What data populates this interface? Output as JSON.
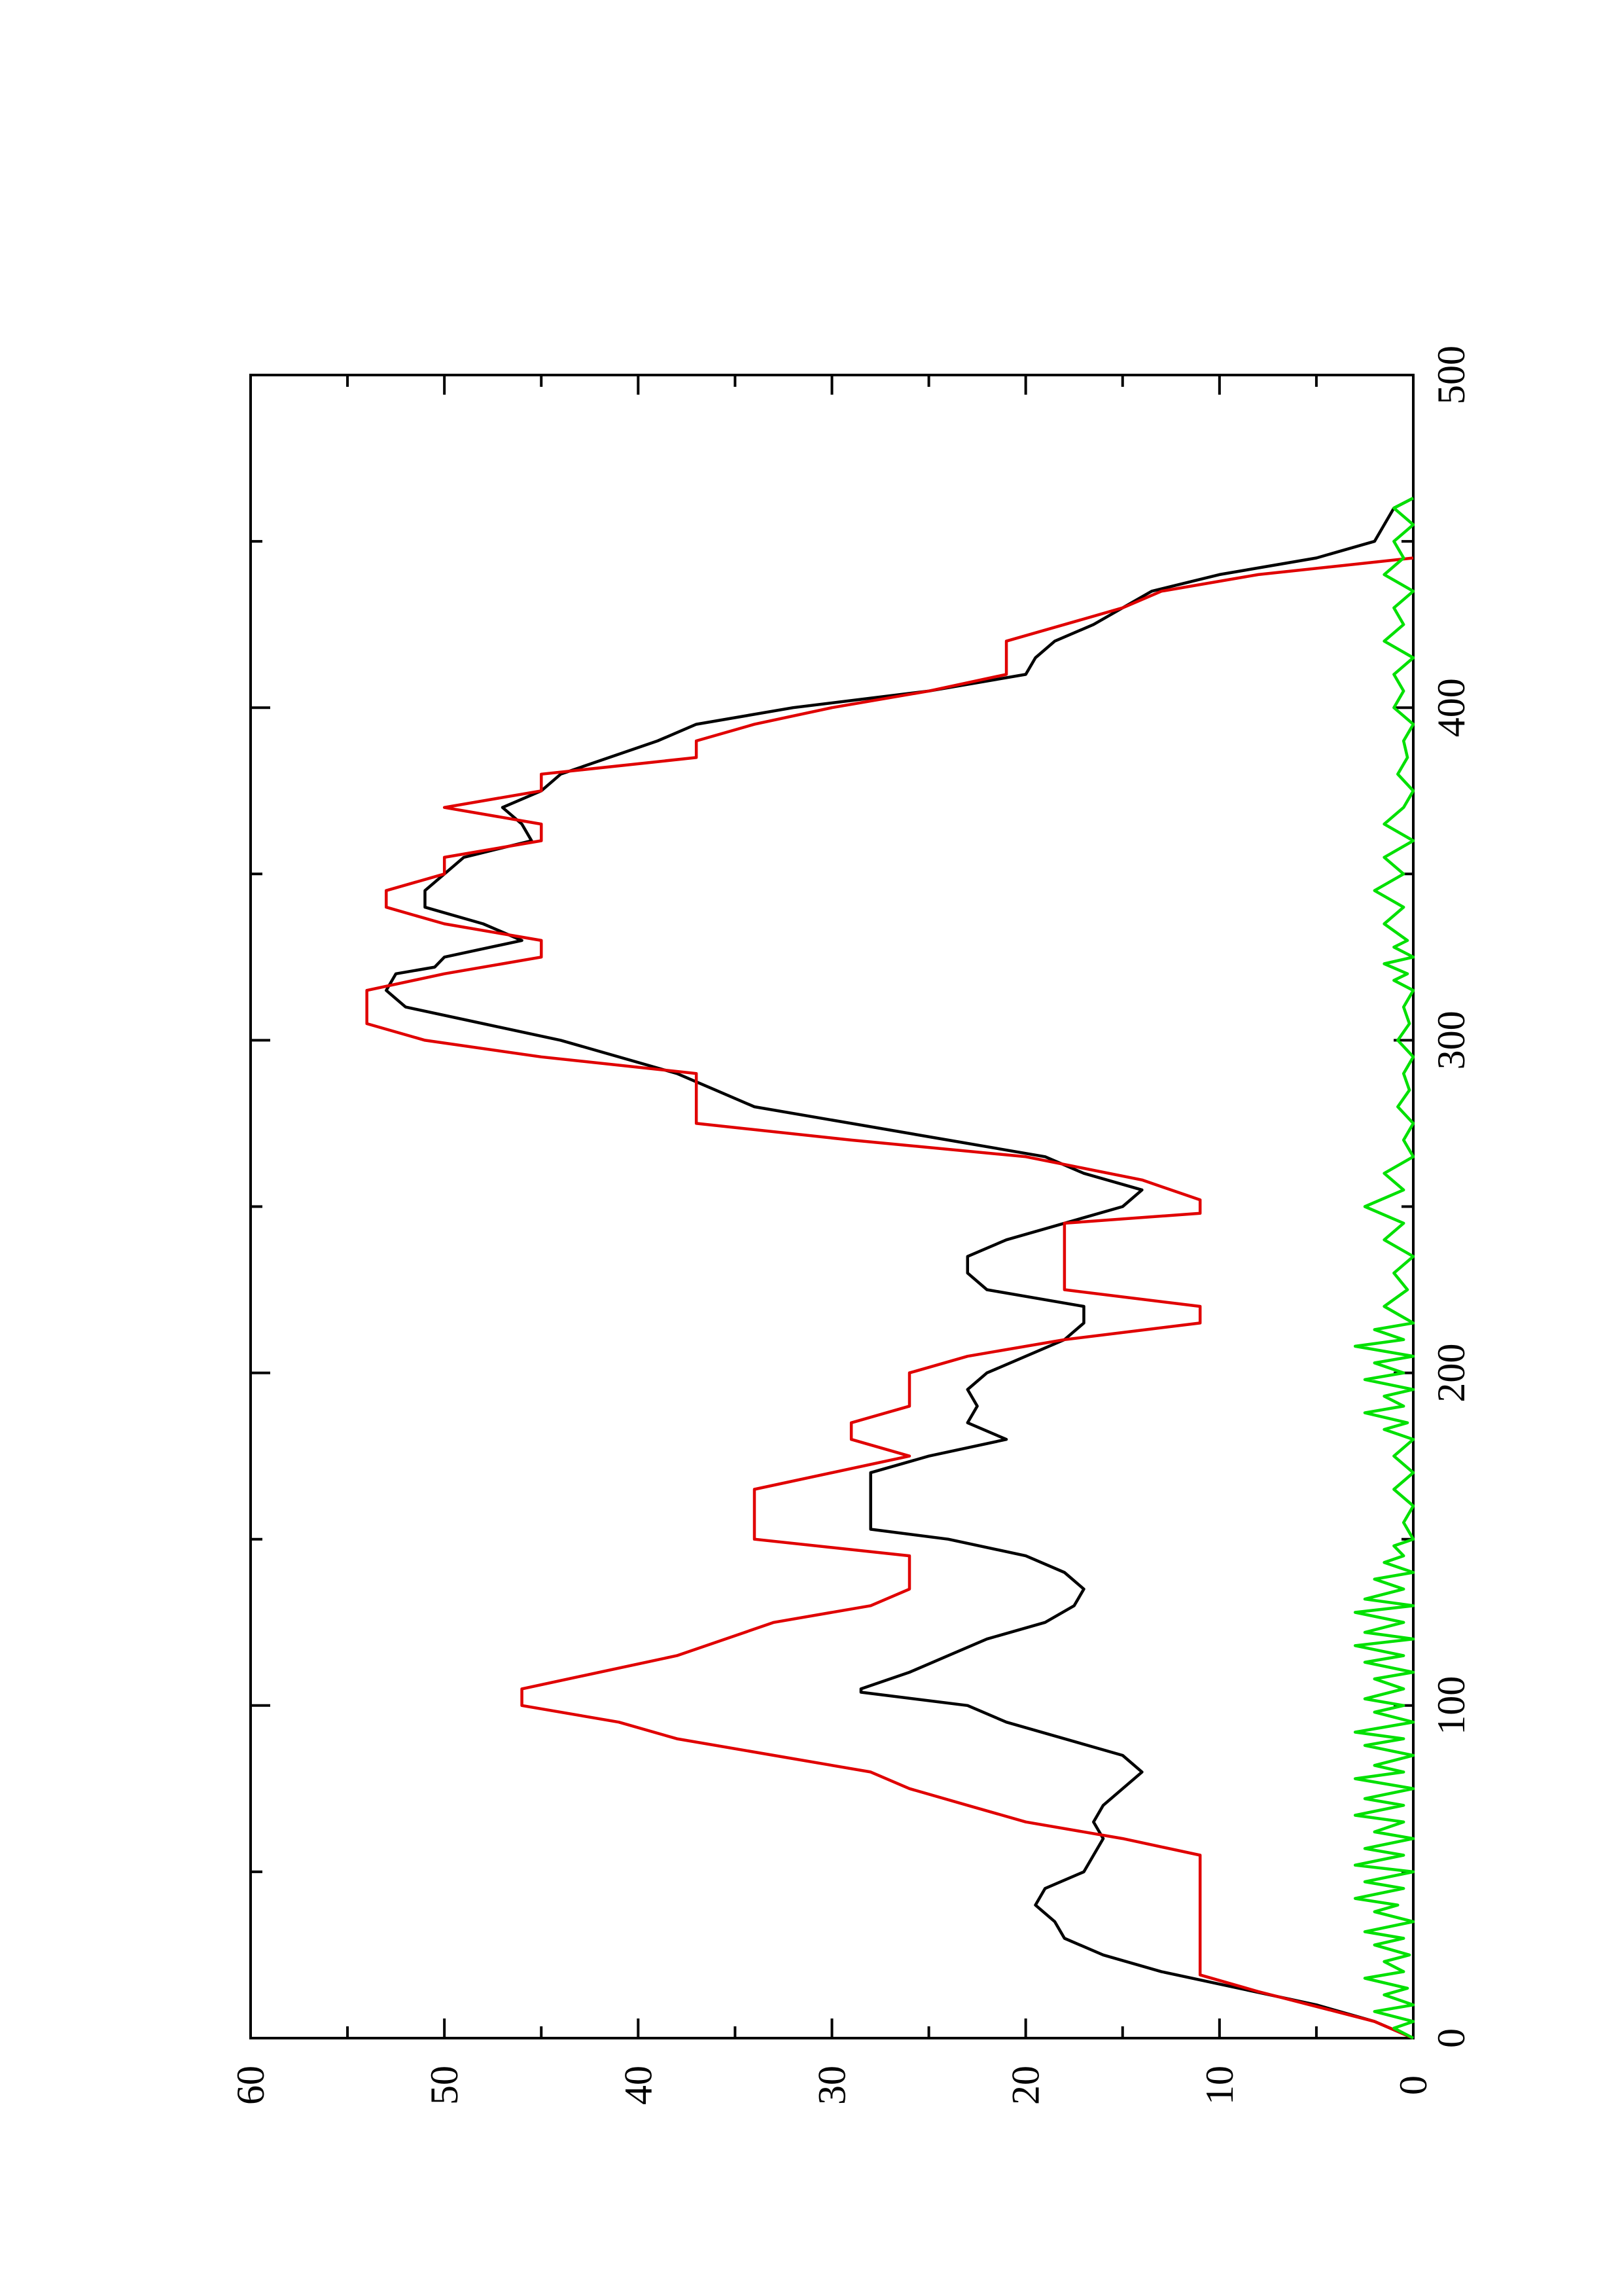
{
  "chart_data": {
    "type": "line",
    "title": "",
    "xlabel": "",
    "ylabel": "",
    "orientation": "rotated-90-ccw",
    "xlim": [
      0,
      500
    ],
    "ylim": [
      0,
      60
    ],
    "x_ticks": [
      0,
      100,
      200,
      300,
      400,
      500
    ],
    "x_minor_ticks": [
      50,
      150,
      250,
      350,
      450
    ],
    "y_ticks": [
      0,
      10,
      20,
      30,
      40,
      50,
      60
    ],
    "y_minor_ticks": [
      5,
      15,
      25,
      35,
      45,
      55
    ],
    "grid": false,
    "colors": {
      "black_series": "#000000",
      "red_series": "#e00000",
      "green_series": "#00e000"
    },
    "series": [
      {
        "color": "#000000",
        "points": [
          [
            0,
            0
          ],
          [
            5,
            2
          ],
          [
            10,
            5
          ],
          [
            15,
            9
          ],
          [
            20,
            13
          ],
          [
            25,
            16
          ],
          [
            30,
            18
          ],
          [
            35,
            18.5
          ],
          [
            40,
            19.5
          ],
          [
            45,
            19
          ],
          [
            50,
            17
          ],
          [
            55,
            16.5
          ],
          [
            60,
            16
          ],
          [
            65,
            16.5
          ],
          [
            70,
            16
          ],
          [
            75,
            15
          ],
          [
            80,
            14
          ],
          [
            85,
            15
          ],
          [
            90,
            18
          ],
          [
            95,
            21
          ],
          [
            100,
            23
          ],
          [
            104,
            28.5
          ],
          [
            105,
            28.5
          ],
          [
            110,
            26
          ],
          [
            115,
            24
          ],
          [
            120,
            22
          ],
          [
            125,
            19
          ],
          [
            130,
            17.5
          ],
          [
            135,
            17
          ],
          [
            140,
            18
          ],
          [
            145,
            20
          ],
          [
            150,
            24
          ],
          [
            153,
            28
          ],
          [
            170,
            28
          ],
          [
            175,
            25
          ],
          [
            180,
            21
          ],
          [
            185,
            23
          ],
          [
            190,
            22.5
          ],
          [
            195,
            23
          ],
          [
            200,
            22
          ],
          [
            205,
            20
          ],
          [
            210,
            18
          ],
          [
            215,
            17
          ],
          [
            220,
            17
          ],
          [
            225,
            22
          ],
          [
            230,
            23
          ],
          [
            235,
            23
          ],
          [
            240,
            21
          ],
          [
            245,
            18
          ],
          [
            250,
            15
          ],
          [
            255,
            14
          ],
          [
            260,
            17
          ],
          [
            265,
            19
          ],
          [
            270,
            24
          ],
          [
            275,
            29
          ],
          [
            280,
            34
          ],
          [
            285,
            36
          ],
          [
            290,
            38
          ],
          [
            300,
            44
          ],
          [
            305,
            48
          ],
          [
            310,
            52
          ],
          [
            315,
            53
          ],
          [
            320,
            52.5
          ],
          [
            322,
            50.5
          ],
          [
            325,
            50
          ],
          [
            330,
            46
          ],
          [
            335,
            48
          ],
          [
            340,
            51
          ],
          [
            345,
            51
          ],
          [
            350,
            50
          ],
          [
            355,
            49
          ],
          [
            360,
            45.5
          ],
          [
            365,
            46
          ],
          [
            370,
            47
          ],
          [
            375,
            45
          ],
          [
            380,
            44
          ],
          [
            390,
            39
          ],
          [
            395,
            37
          ],
          [
            400,
            32
          ],
          [
            405,
            25
          ],
          [
            410,
            20
          ],
          [
            415,
            19.5
          ],
          [
            420,
            18.5
          ],
          [
            425,
            16.5
          ],
          [
            430,
            15
          ],
          [
            435,
            13.5
          ],
          [
            440,
            10
          ],
          [
            445,
            5
          ],
          [
            450,
            2
          ],
          [
            460,
            1
          ],
          [
            463,
            0
          ]
        ]
      },
      {
        "color": "#e00000",
        "points": [
          [
            0,
            0
          ],
          [
            5,
            2
          ],
          [
            8,
            4
          ],
          [
            14,
            8
          ],
          [
            19,
            11
          ],
          [
            55,
            11
          ],
          [
            60,
            15
          ],
          [
            65,
            20
          ],
          [
            70,
            23
          ],
          [
            75,
            26
          ],
          [
            80,
            28
          ],
          [
            85,
            33
          ],
          [
            90,
            38
          ],
          [
            95,
            41
          ],
          [
            100,
            46
          ],
          [
            105,
            46
          ],
          [
            115,
            38
          ],
          [
            125,
            33
          ],
          [
            130,
            28
          ],
          [
            135,
            26
          ],
          [
            145,
            26
          ],
          [
            150,
            34
          ],
          [
            165,
            34
          ],
          [
            175,
            26
          ],
          [
            180,
            29
          ],
          [
            185,
            29
          ],
          [
            190,
            26
          ],
          [
            200,
            26
          ],
          [
            205,
            23
          ],
          [
            210,
            18
          ],
          [
            215,
            11
          ],
          [
            220,
            11
          ],
          [
            225,
            18
          ],
          [
            245,
            18
          ],
          [
            248,
            11
          ],
          [
            252,
            11
          ],
          [
            258,
            14
          ],
          [
            265,
            20
          ],
          [
            270,
            29
          ],
          [
            275,
            37
          ],
          [
            290,
            37
          ],
          [
            295,
            45
          ],
          [
            300,
            51
          ],
          [
            305,
            54
          ],
          [
            315,
            54
          ],
          [
            320,
            50
          ],
          [
            325,
            45
          ],
          [
            330,
            45
          ],
          [
            335,
            50
          ],
          [
            340,
            53
          ],
          [
            345,
            53
          ],
          [
            350,
            50
          ],
          [
            355,
            50
          ],
          [
            360,
            45
          ],
          [
            365,
            45
          ],
          [
            370,
            50
          ],
          [
            375,
            45
          ],
          [
            380,
            45
          ],
          [
            385,
            37
          ],
          [
            390,
            37
          ],
          [
            395,
            34
          ],
          [
            400,
            30
          ],
          [
            405,
            25
          ],
          [
            410,
            21
          ],
          [
            420,
            21
          ],
          [
            425,
            18
          ],
          [
            430,
            15
          ],
          [
            435,
            13
          ],
          [
            440,
            8
          ],
          [
            445,
            0
          ]
        ]
      },
      {
        "color": "#00e000",
        "points": [
          [
            0,
            0
          ],
          [
            3,
            1
          ],
          [
            5,
            0
          ],
          [
            8,
            2
          ],
          [
            10,
            0
          ],
          [
            13,
            1.5
          ],
          [
            15,
            0.3
          ],
          [
            18,
            2.5
          ],
          [
            20,
            0.5
          ],
          [
            23,
            1.5
          ],
          [
            25,
            0.2
          ],
          [
            28,
            2
          ],
          [
            30,
            0.5
          ],
          [
            32,
            2.5
          ],
          [
            35,
            0
          ],
          [
            38,
            2
          ],
          [
            40,
            0.8
          ],
          [
            42,
            3
          ],
          [
            45,
            0.5
          ],
          [
            47,
            2.5
          ],
          [
            50,
            0
          ],
          [
            52,
            3
          ],
          [
            55,
            0.5
          ],
          [
            57,
            2.5
          ],
          [
            60,
            0
          ],
          [
            62,
            2
          ],
          [
            65,
            0.5
          ],
          [
            67,
            3
          ],
          [
            70,
            0.5
          ],
          [
            72,
            2.5
          ],
          [
            75,
            0
          ],
          [
            78,
            3
          ],
          [
            80,
            0.5
          ],
          [
            82,
            2
          ],
          [
            85,
            0
          ],
          [
            88,
            2.5
          ],
          [
            90,
            0.5
          ],
          [
            92,
            3
          ],
          [
            95,
            0
          ],
          [
            98,
            2
          ],
          [
            100,
            0.5
          ],
          [
            102,
            2.5
          ],
          [
            105,
            0.5
          ],
          [
            108,
            2
          ],
          [
            110,
            0
          ],
          [
            113,
            2.5
          ],
          [
            115,
            0.5
          ],
          [
            118,
            3
          ],
          [
            120,
            0
          ],
          [
            122,
            2.5
          ],
          [
            125,
            0.5
          ],
          [
            128,
            3
          ],
          [
            130,
            0
          ],
          [
            132,
            2.5
          ],
          [
            135,
            0.5
          ],
          [
            138,
            2
          ],
          [
            140,
            0
          ],
          [
            143,
            1.5
          ],
          [
            145,
            0.5
          ],
          [
            148,
            1
          ],
          [
            150,
            0
          ],
          [
            155,
            0.5
          ],
          [
            160,
            0
          ],
          [
            165,
            1
          ],
          [
            170,
            0
          ],
          [
            175,
            1
          ],
          [
            180,
            0
          ],
          [
            183,
            1.5
          ],
          [
            185,
            0.3
          ],
          [
            188,
            2.5
          ],
          [
            190,
            0.5
          ],
          [
            193,
            1.5
          ],
          [
            195,
            0
          ],
          [
            198,
            2.5
          ],
          [
            200,
            0.5
          ],
          [
            203,
            2
          ],
          [
            205,
            0
          ],
          [
            208,
            3
          ],
          [
            210,
            0.5
          ],
          [
            213,
            2
          ],
          [
            215,
            0
          ],
          [
            220,
            1.5
          ],
          [
            225,
            0.3
          ],
          [
            230,
            1
          ],
          [
            235,
            0
          ],
          [
            240,
            1.5
          ],
          [
            245,
            0.5
          ],
          [
            250,
            2.5
          ],
          [
            255,
            0.5
          ],
          [
            260,
            1.5
          ],
          [
            265,
            0
          ],
          [
            270,
            0.5
          ],
          [
            275,
            0
          ],
          [
            280,
            0.8
          ],
          [
            285,
            0.2
          ],
          [
            290,
            0.5
          ],
          [
            295,
            0
          ],
          [
            300,
            0.8
          ],
          [
            305,
            0.2
          ],
          [
            310,
            0.5
          ],
          [
            315,
            0
          ],
          [
            318,
            1
          ],
          [
            320,
            0.3
          ],
          [
            323,
            1.5
          ],
          [
            325,
            0
          ],
          [
            328,
            1
          ],
          [
            330,
            0.3
          ],
          [
            335,
            1.5
          ],
          [
            340,
            0.5
          ],
          [
            345,
            2
          ],
          [
            350,
            0.5
          ],
          [
            355,
            1.5
          ],
          [
            360,
            0
          ],
          [
            365,
            1.5
          ],
          [
            370,
            0.5
          ],
          [
            375,
            0
          ],
          [
            380,
            0.8
          ],
          [
            385,
            0.3
          ],
          [
            390,
            0.5
          ],
          [
            395,
            0
          ],
          [
            400,
            1
          ],
          [
            405,
            0.5
          ],
          [
            410,
            1
          ],
          [
            415,
            0
          ],
          [
            420,
            1.5
          ],
          [
            425,
            0.5
          ],
          [
            430,
            1
          ],
          [
            435,
            0
          ],
          [
            440,
            1.5
          ],
          [
            445,
            0.5
          ],
          [
            450,
            1
          ],
          [
            455,
            0
          ],
          [
            460,
            1
          ],
          [
            463,
            0
          ]
        ]
      }
    ]
  }
}
